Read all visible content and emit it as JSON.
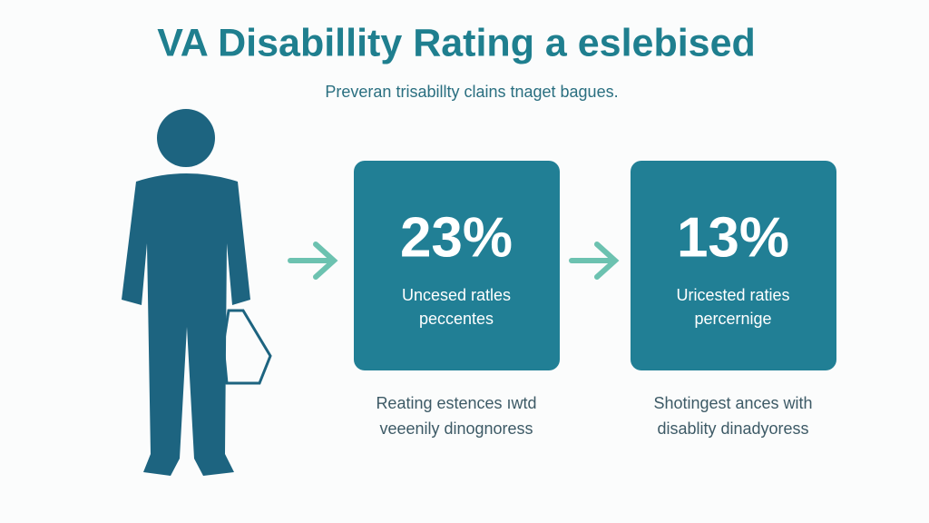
{
  "header": {
    "title": "VA Disabillity Rating a eslebised",
    "subtitle": "Preveran trisabillty clains tnaget bagues."
  },
  "cards": [
    {
      "stat": "23%",
      "label_lines": [
        "Uncesed ratles",
        "peccentes"
      ],
      "caption_lines": [
        "Reating estences ıwtd",
        "veeenily dinognoress"
      ]
    },
    {
      "stat": "13%",
      "label_lines": [
        "Uricested raties",
        "percernige"
      ],
      "caption_lines": [
        "Shotingest ances with",
        "disablity dinadyoress"
      ]
    }
  ]
}
